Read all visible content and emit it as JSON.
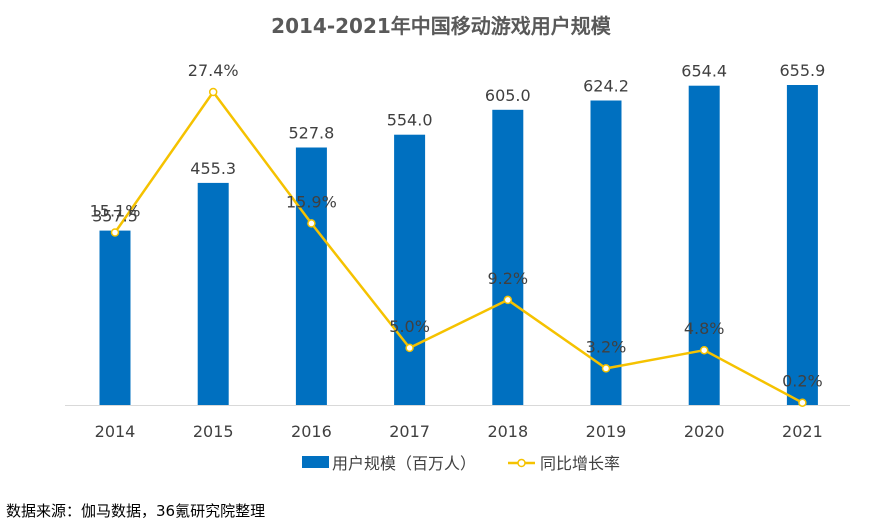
{
  "chart_data": {
    "type": "bar",
    "title": "2014-2021年中国移动游戏用户规模",
    "categories": [
      "2014",
      "2015",
      "2016",
      "2017",
      "2018",
      "2019",
      "2020",
      "2021"
    ],
    "series": [
      {
        "name": "用户规模（百万人）",
        "type": "bar",
        "axis": "left",
        "values": [
          357.5,
          455.3,
          527.8,
          554.0,
          605.0,
          624.2,
          654.4,
          655.9
        ],
        "labels": [
          "357.5",
          "455.3",
          "527.8",
          "554.0",
          "605.0",
          "624.2",
          "654.4",
          "655.9"
        ],
        "color": "#0070C0"
      },
      {
        "name": "同比增长率",
        "type": "line",
        "axis": "right",
        "values": [
          15.1,
          27.4,
          15.9,
          5.0,
          9.2,
          3.2,
          4.8,
          0.2
        ],
        "labels": [
          "15.1%",
          "27.4%",
          "15.9%",
          "5.0%",
          "9.2%",
          "3.2%",
          "4.8%",
          "0.2%"
        ],
        "color": "#F5C200"
      }
    ],
    "left_axis_range": [
      0,
      700
    ],
    "right_axis_range": [
      0,
      30
    ],
    "grid": false,
    "legend": "bottom"
  },
  "source": "数据来源：伽马数据，36氪研究院整理"
}
